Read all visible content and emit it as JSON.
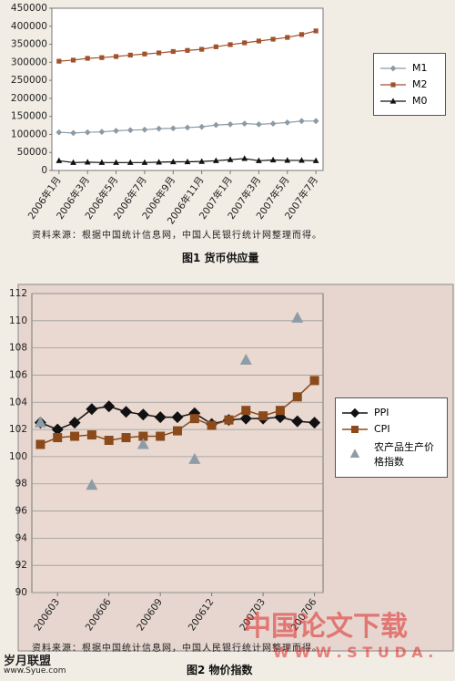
{
  "chart_data": [
    {
      "type": "line",
      "categories": [
        "2006年1月",
        null,
        "2006年3月",
        null,
        "2006年5月",
        null,
        "2006年7月",
        null,
        "2006年9月",
        null,
        "2006年11月",
        null,
        "2007年1月",
        null,
        "2007年3月",
        null,
        "2007年5月",
        null,
        "2007年7月"
      ],
      "series": [
        {
          "name": "M1",
          "color": "#8c9aa6",
          "marker": "diamond",
          "line": true,
          "values": [
            106000,
            104000,
            106000,
            107000,
            110000,
            112000,
            113000,
            116000,
            117000,
            119000,
            121000,
            126000,
            128000,
            130000,
            128000,
            130000,
            133000,
            137000,
            137000
          ]
        },
        {
          "name": "M2",
          "color": "#a0522d",
          "marker": "square",
          "line": true,
          "values": [
            303000,
            306000,
            311000,
            313000,
            316000,
            320000,
            323000,
            326000,
            330000,
            333000,
            336000,
            343000,
            349000,
            354000,
            359000,
            364000,
            369000,
            377000,
            387000
          ]
        },
        {
          "name": "M0",
          "color": "#111111",
          "marker": "triangle",
          "line": true,
          "values": [
            27000,
            22000,
            23000,
            22000,
            22000,
            22000,
            22000,
            23000,
            24000,
            24000,
            25000,
            27000,
            30000,
            33000,
            27000,
            29000,
            28000,
            28000,
            27000
          ]
        }
      ],
      "ylim": [
        0,
        450000
      ],
      "yticks": [
        0,
        50000,
        100000,
        150000,
        200000,
        250000,
        300000,
        350000,
        400000,
        450000
      ],
      "grid": false,
      "legend": "right"
    },
    {
      "type": "line",
      "categories": [
        null,
        "200603",
        null,
        null,
        "200606",
        null,
        null,
        "200609",
        null,
        null,
        "200612",
        null,
        null,
        "200703",
        null,
        null,
        "200706"
      ],
      "series": [
        {
          "name": "PPI",
          "color": "#111111",
          "marker": "diamond",
          "line": true,
          "values": [
            102.5,
            102.0,
            102.5,
            103.5,
            103.7,
            103.3,
            103.1,
            102.9,
            102.9,
            103.2,
            102.4,
            102.7,
            102.8,
            102.8,
            102.9,
            102.6,
            102.5
          ]
        },
        {
          "name": "CPI",
          "color": "#8b4a1c",
          "marker": "square",
          "line": true,
          "values": [
            100.9,
            101.4,
            101.5,
            101.6,
            101.2,
            101.4,
            101.5,
            101.5,
            101.9,
            102.8,
            102.3,
            102.7,
            103.4,
            103.0,
            103.4,
            104.4,
            105.6
          ]
        },
        {
          "name": "农产品生产价格指数",
          "color": "#8e9ca8",
          "marker": "triangle",
          "line": false,
          "values": [
            102.5,
            null,
            null,
            97.9,
            null,
            null,
            100.9,
            null,
            null,
            99.8,
            null,
            null,
            107.1,
            null,
            null,
            110.2,
            null
          ]
        }
      ],
      "ylim": [
        90,
        112
      ],
      "yticks": [
        90,
        92,
        94,
        96,
        98,
        100,
        102,
        104,
        106,
        108,
        110,
        112
      ],
      "grid": true,
      "legend": "right"
    }
  ],
  "figures": [
    {
      "source": "资料来源：根据中国统计信息网，中国人民银行统计网整理而得。",
      "caption": "图1  货币供应量"
    },
    {
      "source": "资料来源：根据中国统计信息网，中国人民银行统计网整理而得。",
      "caption": "图2  物价指数"
    }
  ],
  "watermarks": [
    "中国论文下载",
    "W W W . S T U D A .",
    "岁月联盟",
    "www.Syue.com"
  ]
}
